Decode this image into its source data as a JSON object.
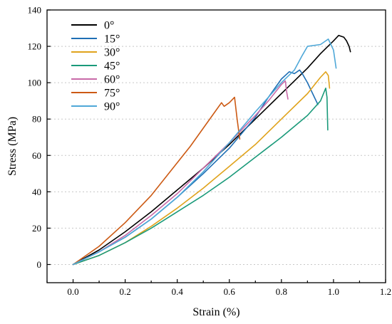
{
  "chart_data": {
    "type": "line",
    "xlabel": "Strain (%)",
    "ylabel": "Stress (MPa)",
    "xlim": [
      -0.1,
      1.2
    ],
    "ylim": [
      -10,
      140
    ],
    "xticks": [
      0.0,
      0.2,
      0.4,
      0.6,
      0.8,
      1.0,
      1.2
    ],
    "xtick_labels": [
      "0.0",
      "0.2",
      "0.4",
      "0.6",
      "0.8",
      "1.0",
      "1.2"
    ],
    "yticks": [
      0,
      20,
      40,
      60,
      80,
      100,
      120,
      140
    ],
    "ytick_labels": [
      "0",
      "20",
      "40",
      "60",
      "80",
      "100",
      "120",
      "140"
    ],
    "grid": "horizontal dotted",
    "legend_position": "top-left",
    "series": [
      {
        "name": "0°",
        "color": "#000000",
        "x": [
          0.0,
          0.1,
          0.2,
          0.3,
          0.4,
          0.5,
          0.6,
          0.7,
          0.8,
          0.9,
          0.95,
          1.0,
          1.02,
          1.04,
          1.05,
          1.06,
          1.065
        ],
        "y": [
          0,
          8,
          18,
          29,
          41,
          53,
          66,
          80,
          94,
          108,
          116,
          123,
          126,
          125,
          123,
          120,
          117
        ]
      },
      {
        "name": "15°",
        "color": "#1f6fb5",
        "x": [
          0.0,
          0.1,
          0.2,
          0.3,
          0.4,
          0.5,
          0.6,
          0.7,
          0.75,
          0.8,
          0.83,
          0.85,
          0.87,
          0.88,
          0.9,
          0.92,
          0.94
        ],
        "y": [
          0,
          7,
          15,
          25,
          37,
          50,
          64,
          81,
          92,
          102,
          106,
          105,
          107,
          105,
          100,
          94,
          88
        ]
      },
      {
        "name": "30°",
        "color": "#e0a31c",
        "x": [
          0.0,
          0.1,
          0.2,
          0.3,
          0.4,
          0.5,
          0.6,
          0.7,
          0.8,
          0.9,
          0.95,
          0.97,
          0.98,
          0.985
        ],
        "y": [
          0,
          5,
          12,
          21,
          31,
          42,
          54,
          66,
          80,
          94,
          103,
          106,
          104,
          97
        ]
      },
      {
        "name": "45°",
        "color": "#1a9a7a",
        "x": [
          0.0,
          0.1,
          0.2,
          0.3,
          0.4,
          0.5,
          0.6,
          0.7,
          0.8,
          0.9,
          0.95,
          0.97,
          0.975,
          0.978
        ],
        "y": [
          0,
          5,
          12,
          20,
          29,
          38,
          48,
          59,
          70,
          82,
          90,
          97,
          92,
          74
        ]
      },
      {
        "name": "60°",
        "color": "#c86aa8",
        "x": [
          0.0,
          0.1,
          0.2,
          0.3,
          0.4,
          0.5,
          0.6,
          0.7,
          0.75,
          0.8,
          0.815,
          0.82,
          0.825
        ],
        "y": [
          0,
          7,
          16,
          27,
          39,
          53,
          67,
          82,
          90,
          99,
          101,
          95,
          91
        ]
      },
      {
        "name": "75°",
        "color": "#cc5a14",
        "x": [
          0.0,
          0.1,
          0.2,
          0.3,
          0.4,
          0.45,
          0.5,
          0.55,
          0.57,
          0.58,
          0.6,
          0.62,
          0.63,
          0.64
        ],
        "y": [
          0,
          10,
          23,
          38,
          56,
          65,
          75,
          85,
          89,
          87,
          89,
          92,
          80,
          69
        ]
      },
      {
        "name": "90°",
        "color": "#4fa8d8",
        "x": [
          0.0,
          0.1,
          0.2,
          0.3,
          0.4,
          0.5,
          0.6,
          0.7,
          0.8,
          0.85,
          0.88,
          0.9,
          0.95,
          0.98,
          1.0,
          1.01
        ],
        "y": [
          0,
          7,
          15,
          25,
          37,
          51,
          67,
          84,
          100,
          107,
          115,
          120,
          121,
          124,
          118,
          108
        ]
      }
    ]
  }
}
